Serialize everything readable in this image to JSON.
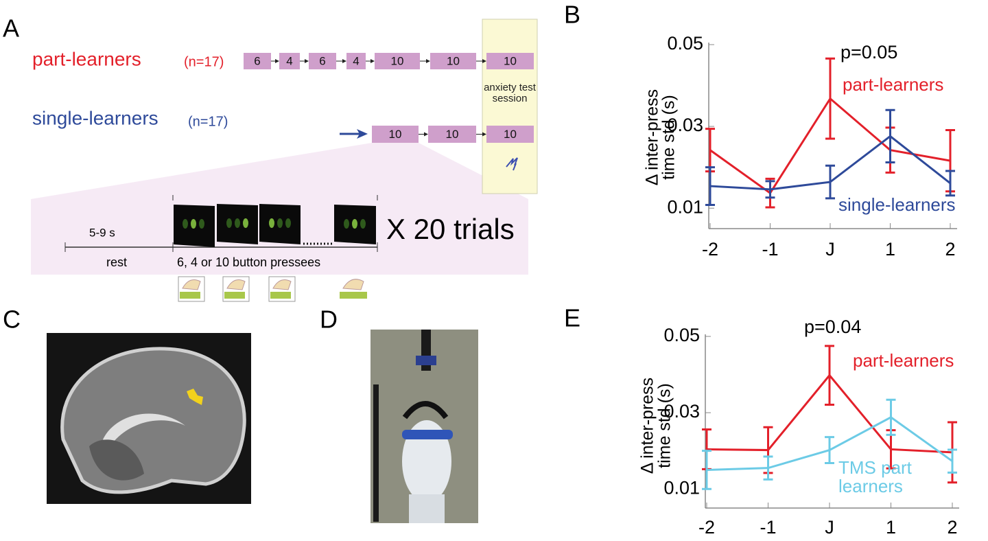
{
  "panel_labels": [
    "A",
    "B",
    "C",
    "D",
    "E"
  ],
  "diagram": {
    "groups": [
      {
        "name": "part-learners",
        "n": "(n=17)",
        "blocks": [
          "6",
          "4",
          "6",
          "4",
          "10",
          "10",
          "10"
        ]
      },
      {
        "name": "single-learners",
        "n": "(n=17)",
        "blocks": [
          "10",
          "10",
          "10"
        ]
      }
    ],
    "test_session": "anxiety test session",
    "trial": {
      "duration": "5-9 s",
      "rest": "rest",
      "presses": "6, 4 or 10 button pressees",
      "repeat": "X 20 trials"
    }
  },
  "chart_data": [
    {
      "type": "line",
      "ylabel": [
        "Δ inter-press",
        "time std (s)"
      ],
      "annotation": "p=0.05",
      "categories": [
        "-2",
        "-1",
        "J",
        "1",
        "2"
      ],
      "series": [
        {
          "name": "part-learners",
          "color": "#e3202a",
          "values": [
            0.0242,
            0.0137,
            0.0368,
            0.0242,
            0.0216
          ],
          "errors": [
            0.0052,
            0.0035,
            0.0098,
            0.0055,
            0.0075
          ]
        },
        {
          "name": "single-learners",
          "color": "#2e4a9a",
          "values": [
            0.0154,
            0.0146,
            0.0164,
            0.0276,
            0.0161
          ],
          "errors": [
            0.0046,
            0.002,
            0.004,
            0.0064,
            0.003
          ]
        }
      ],
      "ylim": [
        0.005,
        0.05
      ],
      "yticks": [
        0.01,
        0.03,
        0.05
      ],
      "grid": false
    },
    {
      "type": "line",
      "ylabel": [
        "Δ inter-press",
        "time std (s)"
      ],
      "annotation": "p=0.04",
      "categories": [
        "-2",
        "-1",
        "J",
        "1",
        "2"
      ],
      "series": [
        {
          "name": "part-learners",
          "color": "#e3202a",
          "values": [
            0.0204,
            0.0202,
            0.0398,
            0.0204,
            0.0196
          ],
          "errors": [
            0.0052,
            0.006,
            0.0077,
            0.005,
            0.0079
          ]
        },
        {
          "name": "TMS part learners",
          "color": "#6ccbe6",
          "values": [
            0.015,
            0.0155,
            0.0202,
            0.0288,
            0.0173
          ],
          "errors": [
            0.005,
            0.003,
            0.0034,
            0.0046,
            0.003
          ]
        }
      ],
      "ylim": [
        0.005,
        0.05
      ],
      "yticks": [
        0.01,
        0.03,
        0.05
      ],
      "grid": false
    }
  ]
}
